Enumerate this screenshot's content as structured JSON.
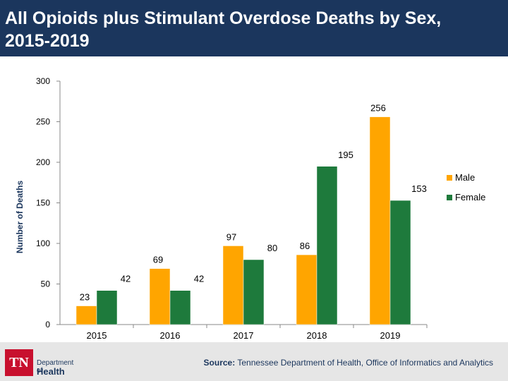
{
  "header": {
    "title_line1": "All Opioids plus Stimulant Overdose Deaths by Sex,",
    "title_line2": "2015-2019"
  },
  "footer": {
    "logo_tn": "TN",
    "logo_dept": "Department of",
    "logo_health": "Health",
    "source_label": "Source:",
    "source_text": "Tennessee Department of Health, Office of Informatics and Analytics"
  },
  "colors": {
    "male": "#ffa500",
    "female": "#1e7a3c",
    "axis": "#888888",
    "title_bg": "#1b365d"
  },
  "chart_data": {
    "type": "bar",
    "title": "All Opioids plus Stimulant Overdose Deaths by Sex, 2015-2019",
    "xlabel": "",
    "ylabel": "Number of Deaths",
    "ylim": [
      0,
      300
    ],
    "yticks": [
      0,
      50,
      100,
      150,
      200,
      250,
      300
    ],
    "categories": [
      "2015",
      "2016",
      "2017",
      "2018",
      "2019"
    ],
    "series": [
      {
        "name": "Male",
        "values": [
          23,
          69,
          97,
          86,
          256
        ]
      },
      {
        "name": "Female",
        "values": [
          42,
          42,
          80,
          195,
          153
        ]
      }
    ],
    "legend_position": "right",
    "grid": false
  }
}
